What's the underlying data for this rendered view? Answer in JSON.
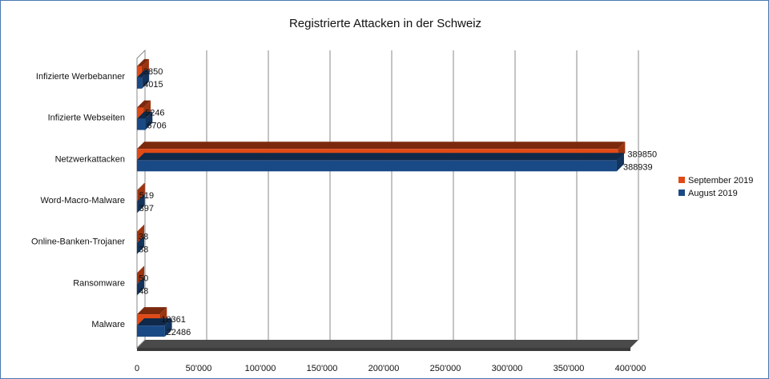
{
  "chart_data": {
    "type": "bar",
    "orientation": "horizontal",
    "style": "3d",
    "title": "Registrierte Attacken in der Schweiz",
    "categories": [
      "Infizierte Werbebanner",
      "Infizierte Webseiten",
      "Netzwerkattacken",
      "Word-Macro-Malware",
      "Online-Banken-Trojaner",
      "Ransomware",
      "Malware"
    ],
    "series": [
      {
        "name": "September 2019",
        "color": "#e04a17",
        "values": [
          3850,
          5246,
          389850,
          519,
          38,
          50,
          18361
        ],
        "labels": [
          "3850",
          "5246",
          "389850",
          "519",
          "38",
          "50",
          "18361"
        ]
      },
      {
        "name": "August 2019",
        "color": "#1a4a85",
        "values": [
          4015,
          6706,
          388939,
          397,
          38,
          48,
          22486
        ],
        "labels": [
          "4015",
          "6706",
          "388939",
          "397",
          "38",
          "48",
          "22486"
        ]
      }
    ],
    "xlim": [
      0,
      400000
    ],
    "xticks": [
      0,
      50000,
      100000,
      150000,
      200000,
      250000,
      300000,
      350000,
      400000
    ],
    "xtick_labels": [
      "0",
      "50'000",
      "100'000",
      "150'000",
      "200'000",
      "250'000",
      "300'000",
      "350'000",
      "400'000"
    ],
    "grid": true,
    "legend": "right"
  }
}
